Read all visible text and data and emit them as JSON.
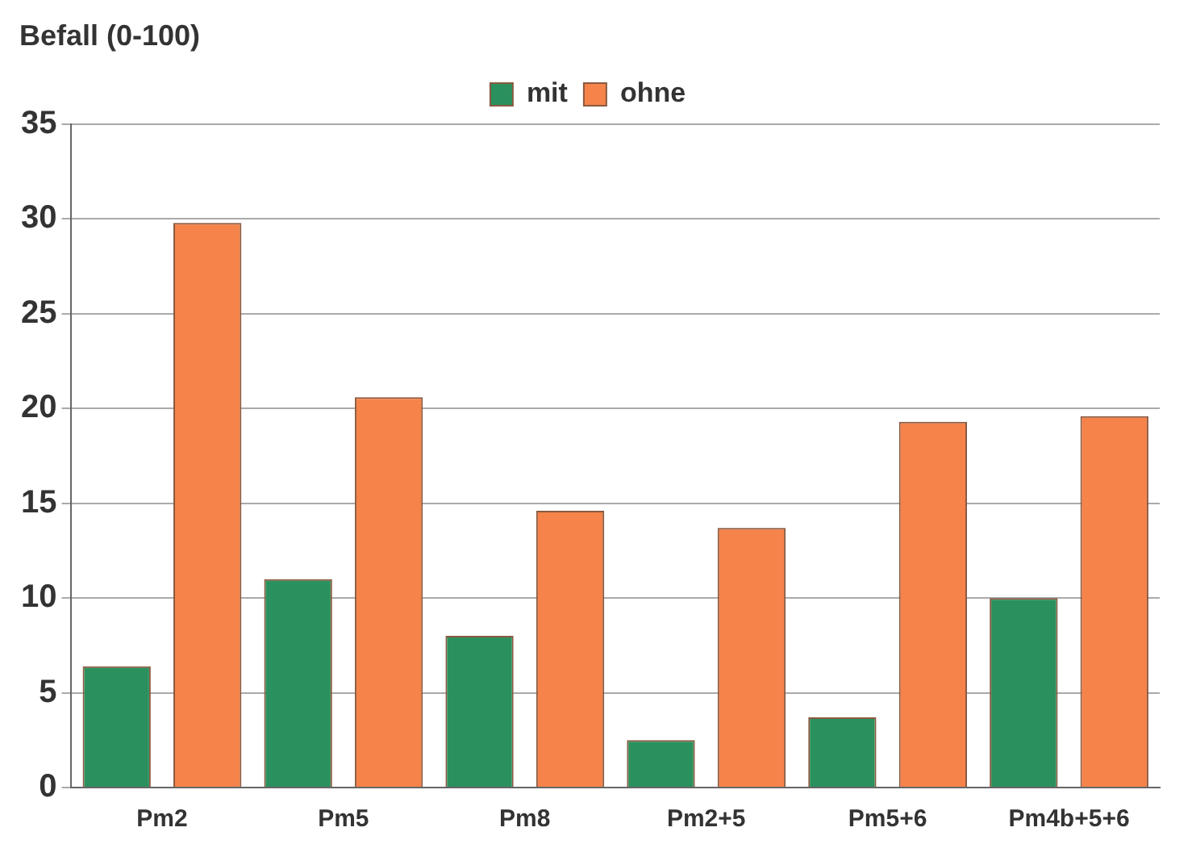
{
  "chart_data": {
    "type": "bar",
    "ylabel": "Befall (0-100)",
    "categories": [
      "Pm2",
      "Pm5",
      "Pm8",
      "Pm2+5",
      "Pm5+6",
      "Pm4b+5+6"
    ],
    "series": [
      {
        "name": "mit",
        "color": "#2a915e",
        "values": [
          6.4,
          11.0,
          8.0,
          2.5,
          3.7,
          10.0
        ]
      },
      {
        "name": "ohne",
        "color": "#f5834a",
        "values": [
          29.8,
          20.6,
          14.6,
          13.7,
          19.3,
          19.6
        ]
      }
    ],
    "ylim": [
      0,
      35
    ],
    "yticks": [
      0,
      5,
      10,
      15,
      20,
      25,
      30,
      35
    ],
    "grid": "y",
    "legend": "top"
  }
}
